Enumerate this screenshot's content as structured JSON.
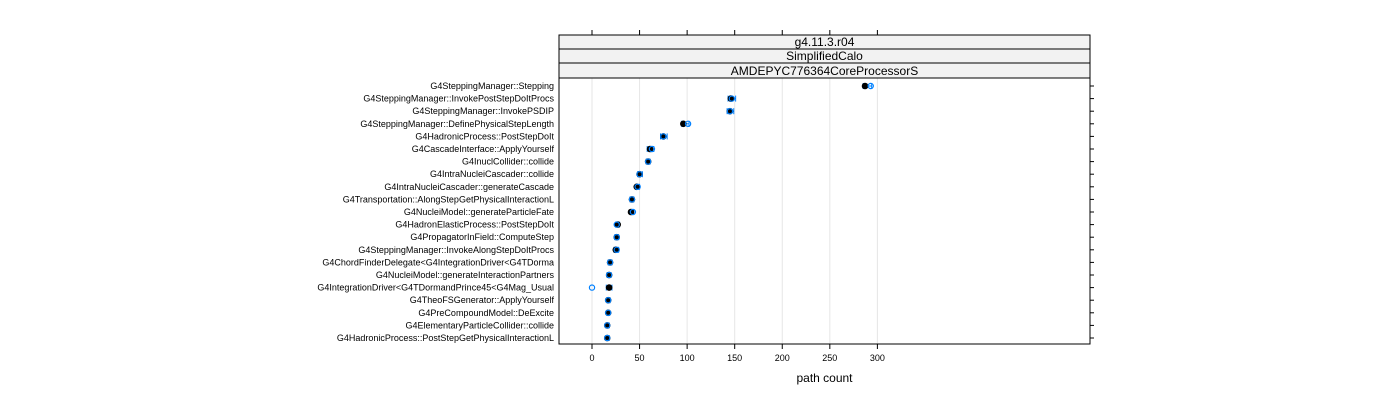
{
  "chart_data": {
    "type": "dotplot",
    "xlabel": "path count",
    "xlim": [
      -20,
      315
    ],
    "x_ticks": [
      0,
      50,
      100,
      150,
      200,
      250,
      300
    ],
    "x_tick_labels": [
      "0",
      "50",
      "100",
      "150",
      "200",
      "250",
      "300"
    ],
    "grid": "vertical",
    "strips": [
      "g4.11.3.r04",
      "SimplifiedCalo",
      "AMDEPYC776364CoreProcessorS"
    ],
    "colors": {
      "filled": "#000000",
      "open": "#0080ff",
      "whisker": "#0080ff",
      "grid": "#e6e6e6",
      "strip_bg": "#f2f2f2"
    },
    "categories": [
      "G4SteppingManager::Stepping",
      "G4SteppingManager::InvokePostStepDoItProcs",
      "G4SteppingManager::InvokePSDIP",
      "G4SteppingManager::DefinePhysicalStepLength",
      "G4HadronicProcess::PostStepDoIt",
      "G4CascadeInterface::ApplyYourself",
      "G4InuclCollider::collide",
      "G4IntraNucleiCascader::collide",
      "G4IntraNucleiCascader::generateCascade",
      "G4Transportation::AlongStepGetPhysicalInteractionL",
      "G4NucleiModel::generateParticleFate",
      "G4HadronElasticProcess::PostStepDoIt",
      "G4PropagatorInField::ComputeStep",
      "G4SteppingManager::InvokeAlongStepDoItProcs",
      "G4ChordFinderDelegate<G4IntegrationDriver<G4TDorma",
      "G4NucleiModel::generateInteractionPartners",
      "G4IntegrationDriver<G4TDormandPrince45<G4Mag_Usual",
      "G4TheoFSGenerator::ApplyYourself",
      "G4PreCompoundModel::DeExcite",
      "G4ElementaryParticleCollider::collide",
      "G4HadronicProcess::PostStepGetPhysicalInteractionL"
    ],
    "series": [
      {
        "name": "",
        "marker": "filled",
        "values": [
          287,
          146,
          145,
          96,
          75,
          61,
          59,
          50,
          47,
          42,
          41,
          27,
          26,
          25,
          19,
          18,
          18,
          17,
          17,
          16,
          16
        ]
      },
      {
        "name": "",
        "marker": "open",
        "values": [
          293,
          147,
          145,
          101,
          75,
          63,
          59,
          50,
          48,
          42,
          43,
          26,
          26,
          26,
          19,
          18,
          0,
          17,
          17,
          16,
          16
        ]
      }
    ],
    "ranges": [
      [
        285,
        294
      ],
      [
        143,
        151
      ],
      [
        142,
        149
      ],
      [
        94,
        102
      ],
      [
        72,
        79
      ],
      [
        58,
        65
      ],
      [
        57,
        61
      ],
      [
        48,
        53
      ],
      [
        46,
        50
      ],
      [
        40,
        44
      ],
      [
        40,
        44
      ],
      [
        25,
        29
      ],
      [
        24,
        28
      ],
      [
        23,
        28
      ],
      [
        17,
        21
      ],
      [
        16,
        20
      ],
      [
        15,
        21
      ],
      [
        16,
        19
      ],
      [
        16,
        18
      ],
      [
        15,
        18
      ],
      [
        15,
        18
      ]
    ]
  }
}
